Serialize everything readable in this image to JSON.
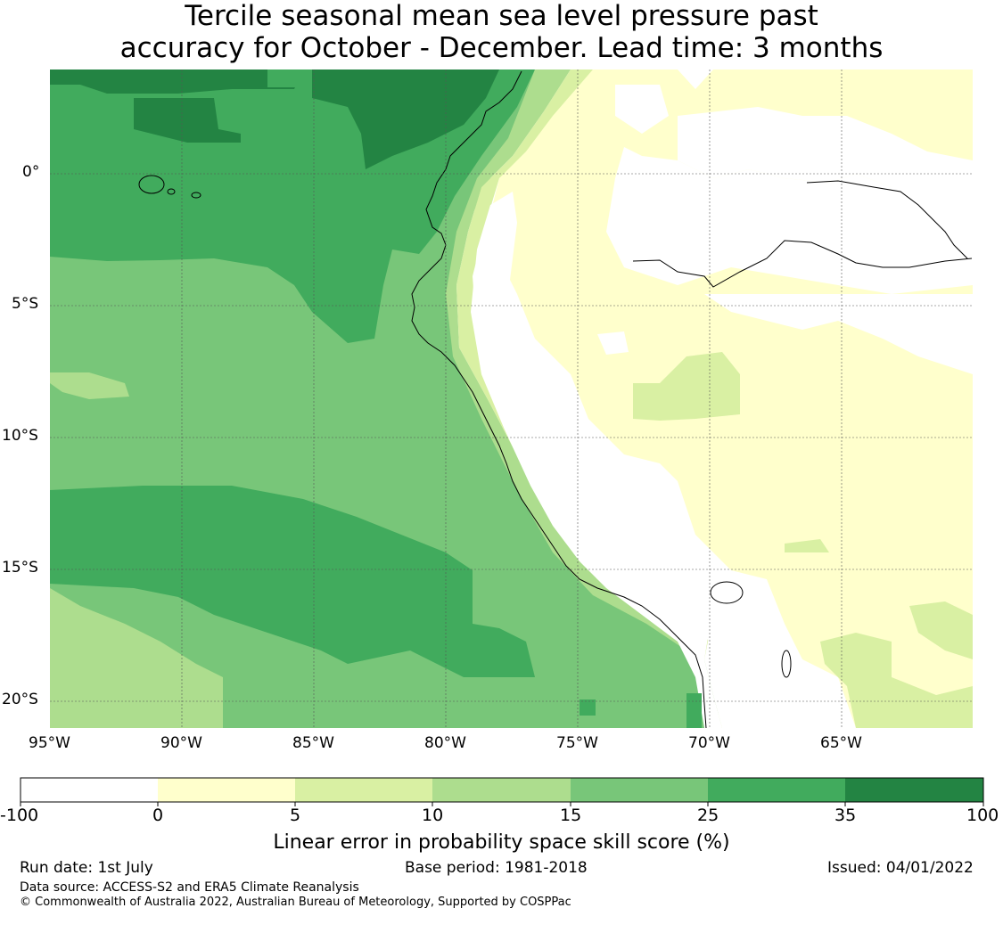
{
  "title": {
    "line1": "Tercile seasonal mean sea level pressure past",
    "line2": "accuracy for October - December. Lead time: 3 months"
  },
  "axes": {
    "lat_labels": [
      "0°",
      "5°S",
      "10°S",
      "15°S",
      "20°S"
    ],
    "lon_labels": [
      "95°W",
      "90°W",
      "85°W",
      "80°W",
      "75°W",
      "70°W",
      "65°W"
    ]
  },
  "colorbar": {
    "title": "Linear error in probability space skill score (%)",
    "ticks": [
      "-100",
      "0",
      "5",
      "10",
      "15",
      "25",
      "35",
      "100"
    ],
    "colors": [
      "#ffffff",
      "#ffffcc",
      "#d9f0a3",
      "#addd8e",
      "#78c679",
      "#41ab5d",
      "#238443"
    ]
  },
  "footer": {
    "run_date": "Run date: 1st July",
    "base_period": "Base period: 1981-2018",
    "issued": "Issued: 04/01/2022",
    "data_source": "Data source: ACCESS-S2 and ERA5 Climate Reanalysis",
    "copyright": "© Commonwealth of Australia 2022, Australian Bureau of Meteorology, Supported by COSPPac"
  }
}
